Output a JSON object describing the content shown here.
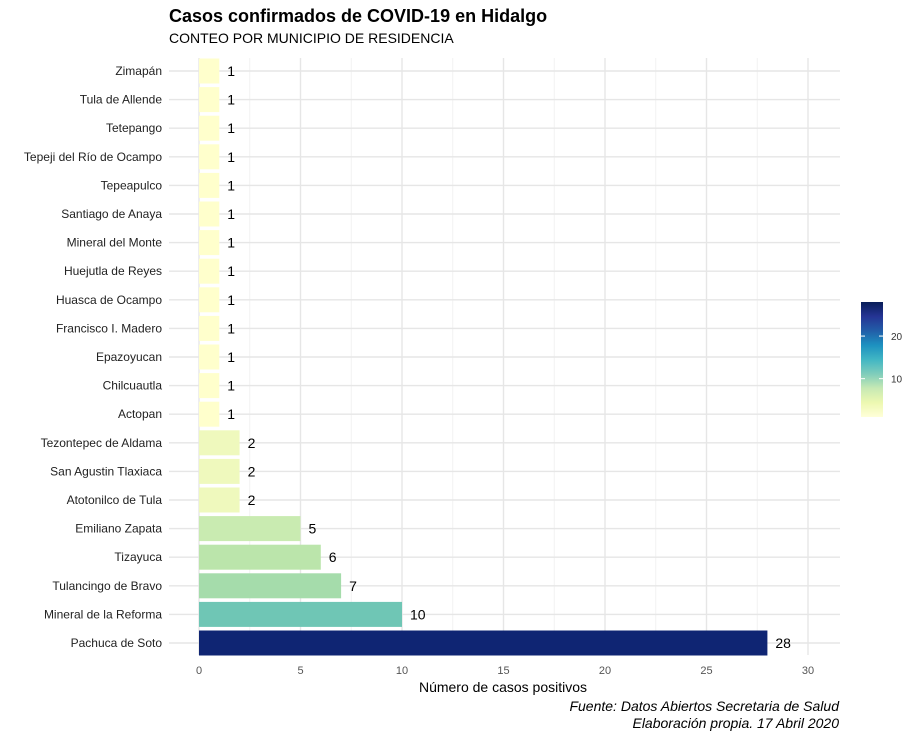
{
  "chart_data": {
    "type": "bar",
    "orientation": "horizontal",
    "title": "Casos confirmados de COVID-19 en Hidalgo",
    "subtitle": "CONTEO POR MUNICIPIO DE RESIDENCIA",
    "xlabel": "Número de casos positivos",
    "ylabel": "",
    "xlim": [
      0,
      31.5
    ],
    "xticks": [
      0,
      5,
      10,
      15,
      20,
      25,
      30
    ],
    "grid": true,
    "categories": [
      "Zimapán",
      "Tula de Allende",
      "Tetepango",
      "Tepeji del Río de Ocampo",
      "Tepeapulco",
      "Santiago de Anaya",
      "Mineral del Monte",
      "Huejutla de Reyes",
      "Huasca de Ocampo",
      "Francisco I. Madero",
      "Epazoyucan",
      "Chilcuautla",
      "Actopan",
      "Tezontepec de Aldama",
      "San Agustin Tlaxiaca",
      "Atotonilco de Tula",
      "Emiliano Zapata",
      "Tizayuca",
      "Tulancingo de Bravo",
      "Mineral de la Reforma",
      "Pachuca de Soto"
    ],
    "values": [
      1,
      1,
      1,
      1,
      1,
      1,
      1,
      1,
      1,
      1,
      1,
      1,
      1,
      2,
      2,
      2,
      5,
      6,
      7,
      10,
      28
    ],
    "colors": [
      "#ffffcc",
      "#ffffcc",
      "#ffffcc",
      "#ffffcc",
      "#ffffcc",
      "#ffffcc",
      "#ffffcc",
      "#ffffcc",
      "#ffffcc",
      "#ffffcc",
      "#ffffcc",
      "#ffffcc",
      "#ffffcc",
      "#eff9bd",
      "#eff9bd",
      "#eff9bd",
      "#c9ebb1",
      "#bbe5ab",
      "#a5dcab",
      "#6fc6b5",
      "#0f2573"
    ],
    "legend": {
      "position": "right",
      "type": "colorbar",
      "ticks": [
        10,
        20
      ],
      "range": [
        1,
        28
      ],
      "palette": "YlGnBu",
      "gradient": [
        "#ffffd9",
        "#edf8b1",
        "#c7e9b4",
        "#7fcdbb",
        "#41b6c4",
        "#1d91c0",
        "#225ea8",
        "#253494",
        "#081d58"
      ]
    },
    "caption": [
      "Fuente: Datos Abiertos Secretaria de Salud",
      "Elaboración propia. 17 Abril 2020"
    ]
  }
}
